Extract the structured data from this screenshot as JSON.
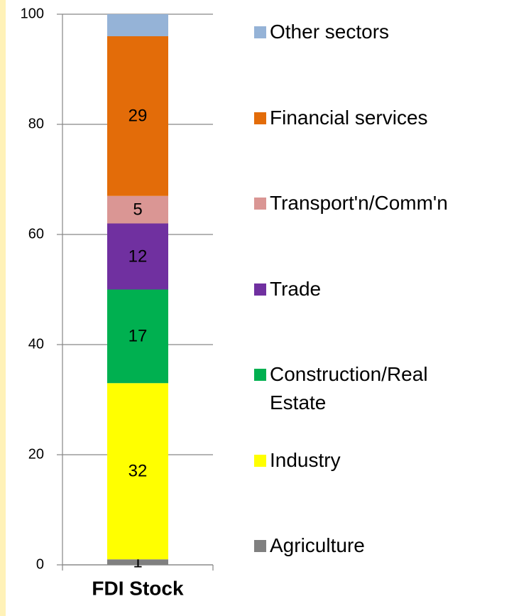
{
  "chart_data": {
    "type": "stacked_bar",
    "categories": [
      "FDI Stock"
    ],
    "series": [
      {
        "name": "Agriculture",
        "color": "#808080",
        "values": [
          1
        ],
        "value_labels": [
          "1"
        ]
      },
      {
        "name": "Industry",
        "color": "#ffff00",
        "values": [
          32
        ],
        "value_labels": [
          "32"
        ]
      },
      {
        "name": "Construction/Real Estate",
        "color": "#00b050",
        "values": [
          17
        ],
        "value_labels": [
          "17"
        ]
      },
      {
        "name": "Trade",
        "color": "#7030a0",
        "values": [
          12
        ],
        "value_labels": [
          "12"
        ]
      },
      {
        "name": "Transport'n/Comm'n",
        "color": "#da9694",
        "values": [
          5
        ],
        "value_labels": [
          "5"
        ]
      },
      {
        "name": "Financial services",
        "color": "#e36c09",
        "values": [
          29
        ],
        "value_labels": [
          "29"
        ]
      },
      {
        "name": "Other sectors",
        "color": "#95b3d7",
        "values": [
          4
        ]
      }
    ],
    "ylim": [
      0,
      100
    ],
    "yticks": [
      0,
      20,
      40,
      60,
      80,
      100
    ],
    "grid": true,
    "legend": "right"
  }
}
